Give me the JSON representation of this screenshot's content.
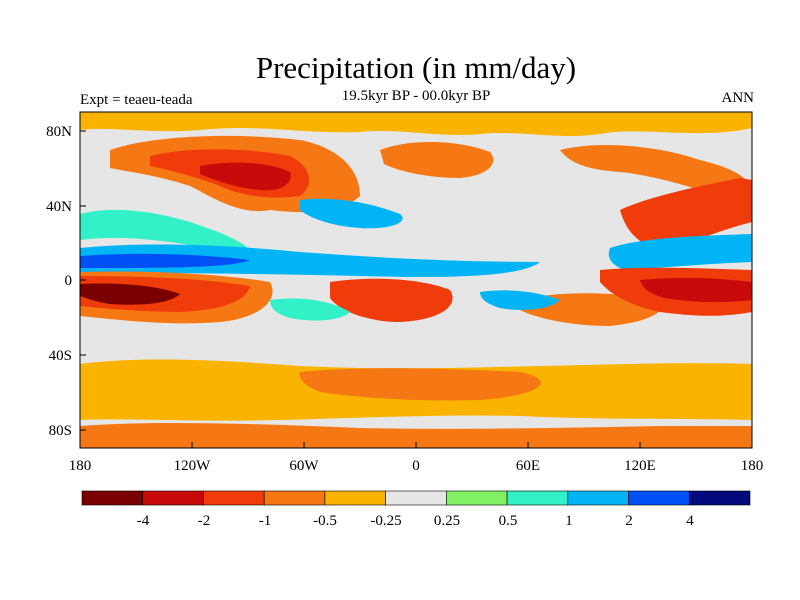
{
  "title": "Precipitation (in mm/day)",
  "subtitle": "19.5kyr BP - 00.0kyr BP",
  "left_label": "Expt = teaeu-teada",
  "right_label": "ANN",
  "map": {
    "x_ticks": [
      "180",
      "120W",
      "60W",
      "0",
      "60E",
      "120E",
      "180"
    ],
    "y_ticks": [
      "80N",
      "40N",
      "0",
      "40S",
      "80S"
    ]
  },
  "colorbar": {
    "labels": [
      "-4",
      "-2",
      "-1",
      "-0.5",
      "-0.25",
      "0.25",
      "0.5",
      "1",
      "2",
      "4"
    ],
    "colors": [
      "#7a0000",
      "#c80a0a",
      "#f03c0a",
      "#f57814",
      "#fab400",
      "#e6e6e6",
      "#82f064",
      "#32f0c8",
      "#00b4f5",
      "#0050f5",
      "#000a7a"
    ]
  },
  "colors": {
    "neutral": "#e6e6e6",
    "strong_dry": "#7a0000",
    "dry": "#f03c0a",
    "wet": "#00b4f5",
    "strong_wet": "#0050f5"
  }
}
